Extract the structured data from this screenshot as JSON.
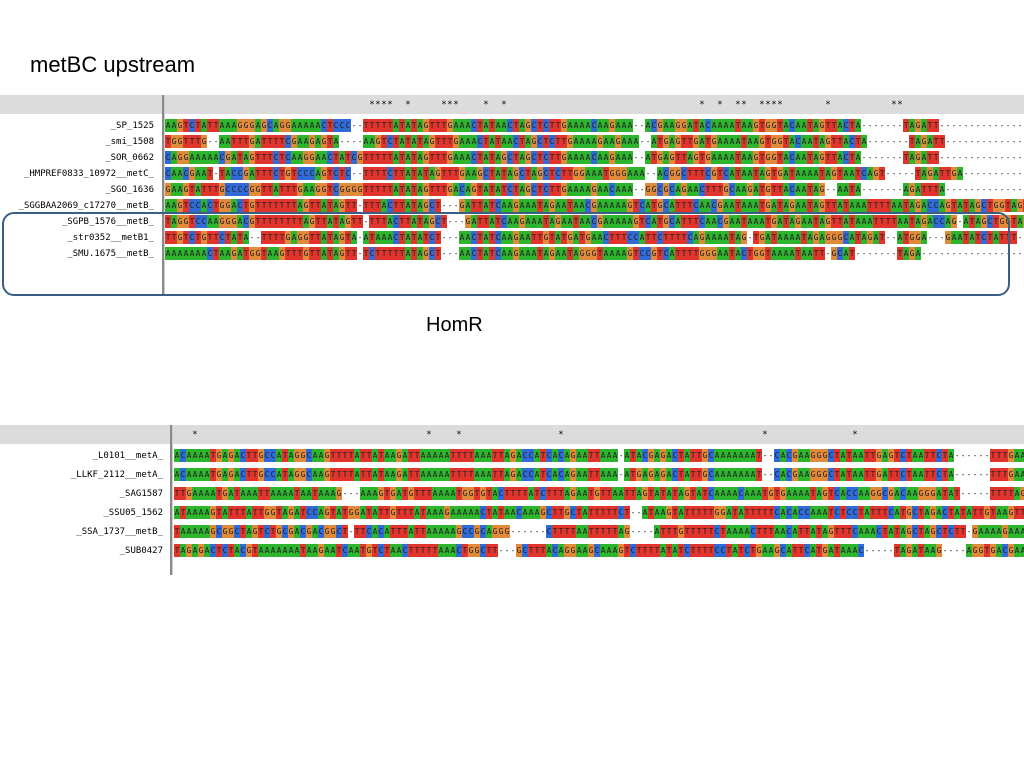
{
  "title": "metBC upstream",
  "group_label": "HomR",
  "panel1": {
    "consensus": "                                  ****  *     ***    *  *                                *  *  **  ****       *          **                                                                                                                 ",
    "rows": [
      {
        "name": "_SP_1525",
        "seq": "AAGTCTATTAAAGGGAGCAGGAAAAACTCCC--TTTTTATATAGTTTGAAACTATAACTAGCTCTTGAAAACAAGAAA--ACGAAGGATACAAAATAAGTGGTACAATAGTTACTA-------TAGATT----------------------TACTATCCAGTAG"
      },
      {
        "name": "_smi_1508",
        "seq": "TGGTTTG--AATTTGATTTTCGAAGAGTA----AAGTCTATATAGTTTGAAACTATAACTAGCTCTTGAAAAGAAGAAA--ATGAGTTGATGAAAATAAGTGGTACAATAGTTACTA-------TAGATT----------------------TACTATCCAGTAG"
      },
      {
        "name": "_SOR_0662",
        "seq": "CAGGAAAAACGATAGTTTCTCAAGGAACTATCGTTTTTATATAGTTTGAAACTATAGCTAGCTCTTGAAAACAAGAAA--ATGAGTTAGTGAAAATAAGTGGTACAATAGTTACTA-------TAGATT----------------------TACTATCCAGTAG"
      },
      {
        "name": "_HMPREF0833_10972__metC_",
        "seq": "CAACGAAT-TACCGATTTCTGTCCCAGTCTC--TTTTCTTATATAGTTTGAAGCTATAGCTAGCTCTTGGAAATGGGAAA--ACGGCTTTCGTCATAATAGTGATAAAATAGTAATCAGT-----TAGATTGA-----------ATATTTATCTACTAG"
      },
      {
        "name": "_SGO_1636",
        "seq": "GAAGTATTTGCCCCGGTTATTTGAAGGTCGGGGTTTTTATATAGTTTGACAGTATATCTAGCTCTTGAAAAGAACAAA--GGCGCAGAACTTTGCAAGATGTTACAATAG--AATA-------AGATTTA-----------------CGAGATTGATAAGTAG"
      },
      {
        "name": "_SGGBAA2069_c17270__metB_",
        "seq": "AAGTCCACTGGACTGTTTTTTTAGTTATAGTT-TTTACTTATAGCT---GATTATCAAGAAATAGAATAACGAAAAAGTCATGCATTTCAACGAATAAATGATAGAATAGTTATAAATTTTAATAGACCAGTATAGCTGGTAGTGATATGTTTTGATAGA"
      },
      {
        "name": "_SGPB_1576__metB_",
        "seq": "TAGGTCCAAGGGACGTTTTTTTTAGTTATAGTT-TTTACTTATAGCT---GATTATCAAGAAATAGAATAACGAAAAAGTCATGCATTTCAACGAATAAATGATAGAATAGTTATAAATTTTAATAGACCAG-ATAGCTGGTAGTGATATGTTTTGATAG"
      },
      {
        "name": "_str0352__metB1_",
        "seq": "TTGTCTGTTCTATA--TTTTGAGGTTATAGTA-ATAAACTATATCT---AACTATCAAGAATTGTATGATGAACTTTCCATTCTTTTCAGAAAATAG-TGATAAAATAGAGGGCATAGAT--ATGGA---GAATATCTATTT-----TATCACTGATAAG"
      },
      {
        "name": "_SMU.1675__metB_",
        "seq": "AAAAAAACTAAGATGGTAAGTTTGTTATAGTT-TCTTTTTATAGCT---AACTATCAAGAAATAGAATAGGGTAAAAGTCCGTCATTTTGGGAATACTGGTAAAATAATT-GCAT-------TAGA-----------------------------------"
      }
    ]
  },
  "panel2": {
    "consensus": "   *                                      *    *                *                                 *              *                                                                        ",
    "rows": [
      {
        "name": "_L0101__metA_",
        "seq": "ACAAAATGAGACTTGCCATAGGCAAGTTTTATTATAAGATTAAAAATTTTAAATTAGACCATCACAGAATTAAA-ATACGAGACTATTGCAAAAAAAT--CACGAAGGGCTATAATTGAGTCTAATTCTA------TTTGAAAGTTGAGTGATTTATAT"
      },
      {
        "name": "_LLKF_2112__metA_",
        "seq": "ACAAAATGAGACTTGCCATAGGCAAGTTTTATTATAAGATTAAAAATTTTAAATTAGACCATCACAGAATTAAA-ATGAGAGACTATTGCAAAAAAAT--CACGAAGGGCTATAATTGATTCTAATTCTA------TTTGAAAGTTGAGTGATTTATAT"
      },
      {
        "name": "_SAG1587",
        "seq": "TTGAAAATGATAAATTAAAATAATAAAG---AAAGTGATGTTTAAAATGGTGTACTTTTATCTTTAGAATGTTAATTAGTATATAGTATCAAAACAAATGTGAAAATAGTCACCAAGGCGACAAGGGATAT-----TTTTAGCTGTAGAATAG--TTGAG"
      },
      {
        "name": "_SSU05_1562",
        "seq": "ATAAAAGTATTTATTGGTAGATCCAGTATGGATATTGTTTATAAAGAAAAACTATAACAAAGCTTGCTATTTTTCT--ATAAGTATTTTTGGATATTTTTCACACCAAATCTCCTATTTCATGCTAGACTATATTGTAAGTTAGATTGGAGTAGATGAATA"
      },
      {
        "name": "_SSA_1737__metB_",
        "seq": "TAAAAAGCGGCTAGTCTGCGACGACGGCT-TTCACATTTATTAAAAAGCCGCAGGG------CTTTTAATTTTTAG----ATTTGTTTTTCTAAAACTTTAACATTATAGTTTCAAACTATAGCTAGCTCTT-GAAAAGAAAAAAGAAAAATGTTTTT"
      },
      {
        "name": "_SUB0427",
        "seq": "TAGAGACTCTACGTAAAAAAATAAGAATCAATGTCTAACTTTTTAAACTGGCTT---GCTTTACAGGAAGCAAAGTCTTTTATATCTTTTCCTATCTGAAGCATTCATGATAAAC-----TAGATAAG----AGGTGACGAAAAATGATA--------"
      }
    ]
  }
}
